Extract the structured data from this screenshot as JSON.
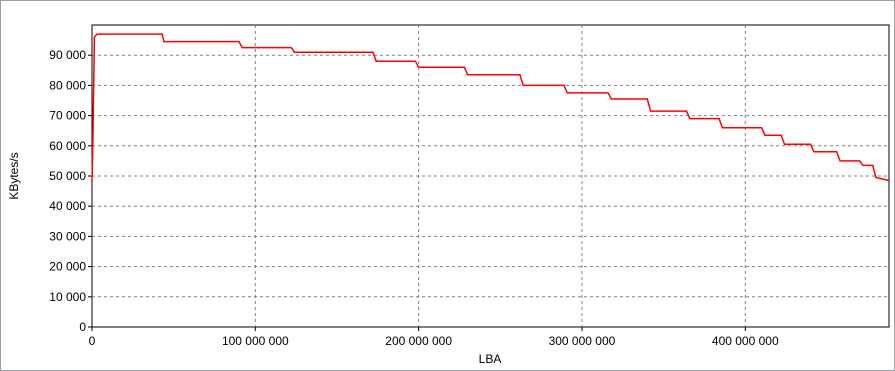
{
  "chart_data": {
    "type": "line",
    "title": "",
    "xlabel": "LBA",
    "ylabel": "KBytes/s",
    "xlim": [
      0,
      488000000
    ],
    "ylim": [
      0,
      100000
    ],
    "x_ticks": [
      0,
      100000000,
      200000000,
      300000000,
      400000000
    ],
    "x_tick_labels": [
      "0",
      "100 000 000",
      "200 000 000",
      "300 000 000",
      "400 000 000"
    ],
    "y_ticks": [
      0,
      10000,
      20000,
      30000,
      40000,
      50000,
      60000,
      70000,
      80000,
      90000
    ],
    "y_tick_labels": [
      "0",
      "10 000",
      "20 000",
      "30 000",
      "40 000",
      "50 000",
      "60 000",
      "70 000",
      "80 000",
      "90 000"
    ],
    "grid": true,
    "colors": {
      "series": "#ff0000",
      "grid": "#808080",
      "background": "#ffffff"
    },
    "series": [
      {
        "name": "",
        "x": [
          0,
          500000,
          1500000,
          3000000,
          43000000,
          44000000,
          90000000,
          92000000,
          122000000,
          124000000,
          172000000,
          174000000,
          198000000,
          200000000,
          228000000,
          230000000,
          262000000,
          264000000,
          289000000,
          291000000,
          316000000,
          318000000,
          340000000,
          342000000,
          364000000,
          366000000,
          384000000,
          386000000,
          410000000,
          412000000,
          422000000,
          424000000,
          440000000,
          442000000,
          456000000,
          458000000,
          470000000,
          472000000,
          478000000,
          480000000,
          488000000
        ],
        "y": [
          48000,
          60000,
          96000,
          97000,
          97000,
          94500,
          94500,
          92500,
          92500,
          91000,
          91000,
          88000,
          88000,
          86000,
          86000,
          83500,
          83500,
          80000,
          80000,
          77500,
          77500,
          75500,
          75500,
          71500,
          71500,
          69000,
          69000,
          66000,
          66000,
          63500,
          63500,
          60500,
          60500,
          58000,
          58000,
          55000,
          55000,
          53500,
          53500,
          49500,
          48500
        ]
      }
    ]
  }
}
